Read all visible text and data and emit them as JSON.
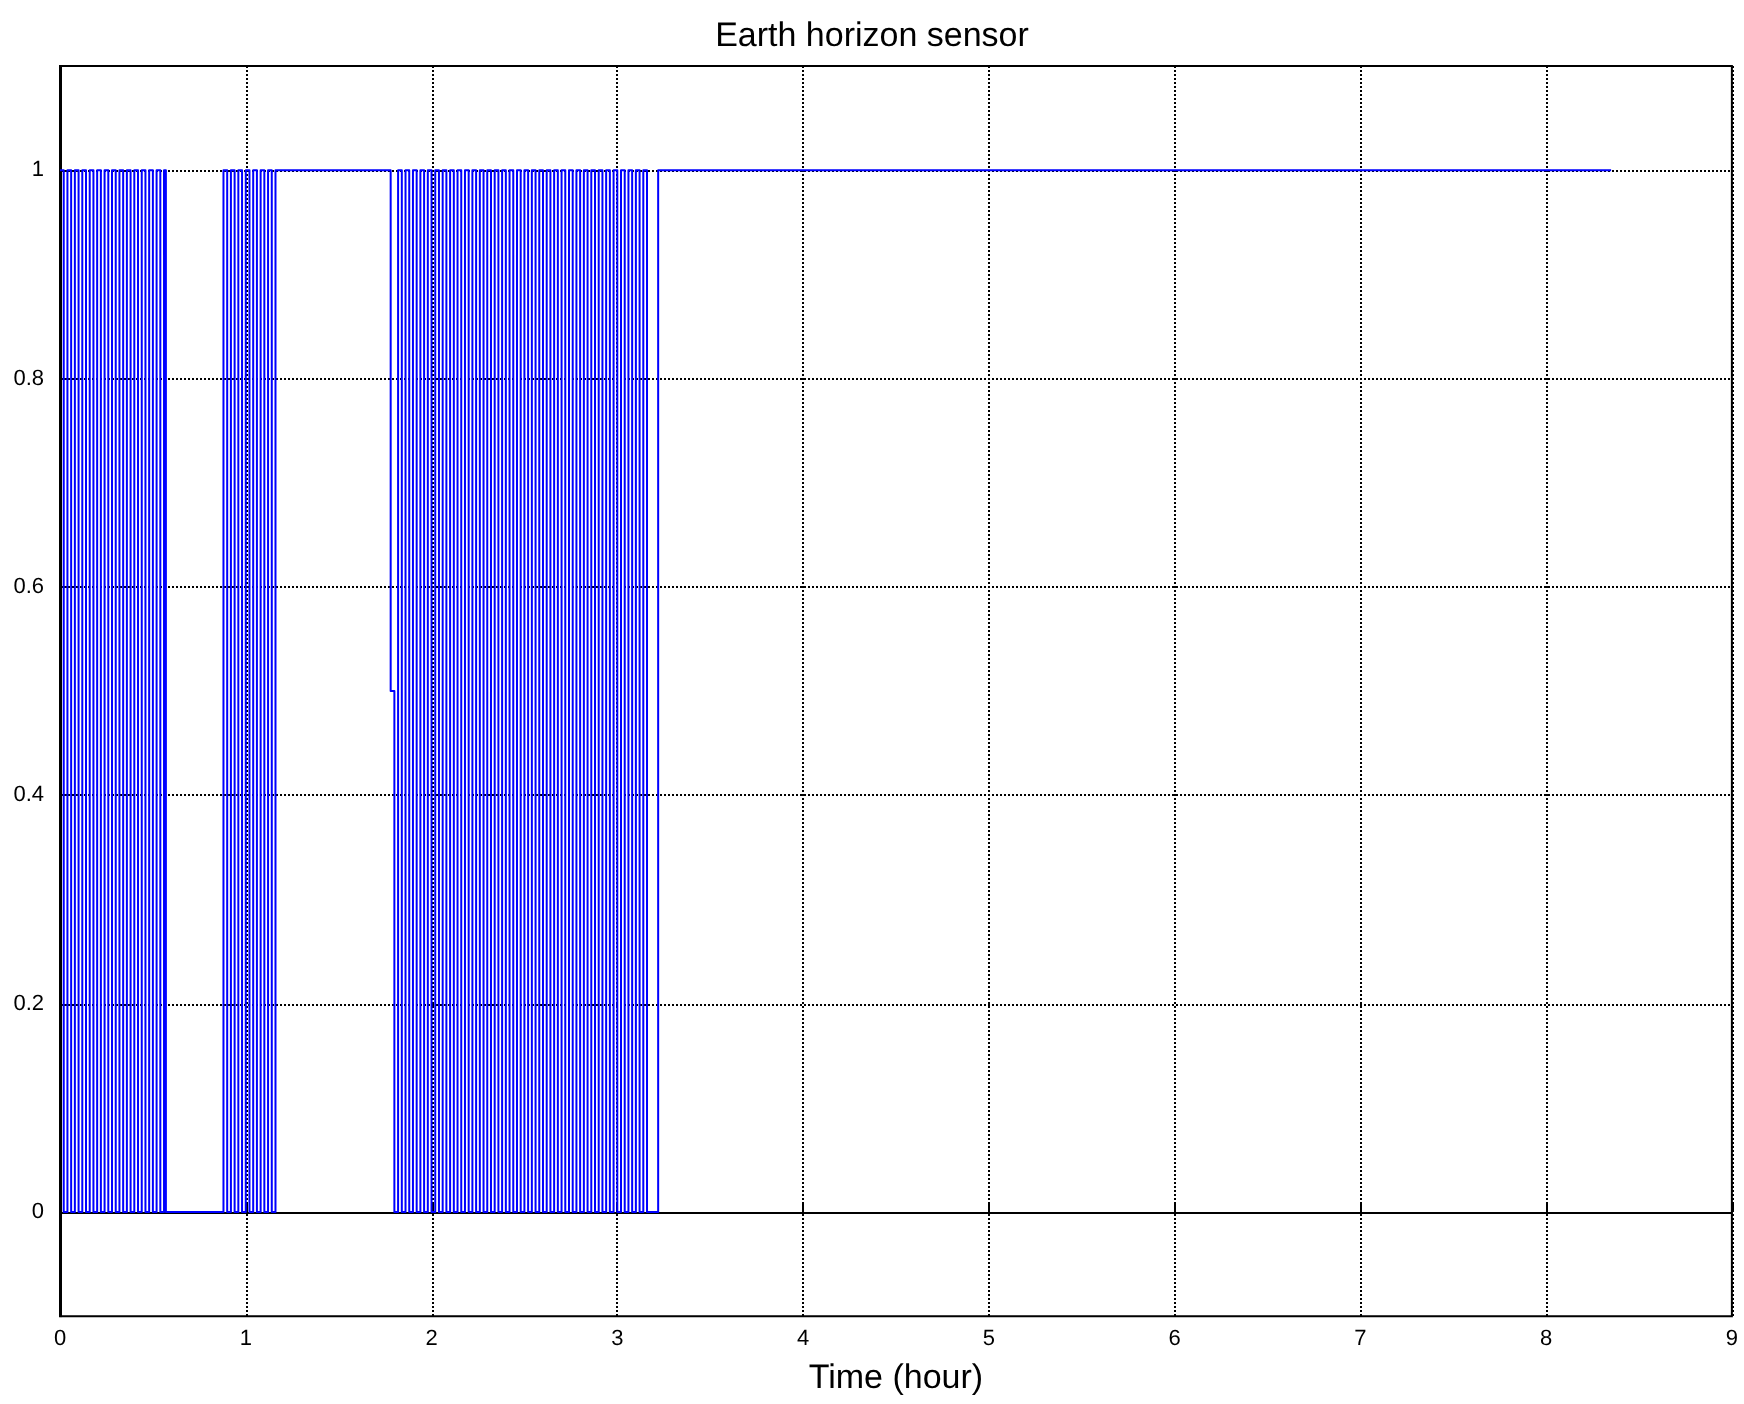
{
  "chart_data": {
    "type": "step",
    "title": "Earth horizon sensor",
    "xlabel": "Time (hour)",
    "xlim": [
      0,
      9
    ],
    "xticks": [
      0,
      1,
      2,
      3,
      4,
      5,
      6,
      7,
      8,
      9
    ],
    "ylim": [
      -0.1,
      1.1
    ],
    "yticks": [
      0,
      0.2,
      0.4,
      0.6,
      0.8,
      1
    ],
    "grid": true,
    "line_style": "solid",
    "series": [
      {
        "color": "#0000ff",
        "x": [
          0,
          0.02,
          0.04,
          0.06,
          0.08,
          0.1,
          0.12,
          0.14,
          0.16,
          0.18,
          0.2,
          0.22,
          0.24,
          0.26,
          0.28,
          0.3,
          0.32,
          0.34,
          0.36,
          0.38,
          0.4,
          0.42,
          0.44,
          0.46,
          0.48,
          0.5,
          0.52,
          0.54,
          0.56,
          0.57,
          0.88,
          0.9,
          0.92,
          0.94,
          0.96,
          0.98,
          1,
          1.02,
          1.04,
          1.06,
          1.08,
          1.1,
          1.12,
          1.14,
          1.16,
          1.78,
          1.8,
          1.82,
          1.84,
          1.86,
          1.88,
          1.9,
          1.92,
          1.94,
          1.96,
          1.98,
          2,
          2.02,
          2.04,
          2.06,
          2.08,
          2.1,
          2.12,
          2.14,
          2.16,
          2.18,
          2.2,
          2.22,
          2.24,
          2.26,
          2.28,
          2.3,
          2.32,
          2.34,
          2.36,
          2.38,
          2.4,
          2.42,
          2.44,
          2.46,
          2.48,
          2.5,
          2.52,
          2.54,
          2.56,
          2.58,
          2.6,
          2.62,
          2.64,
          2.66,
          2.68,
          2.7,
          2.72,
          2.74,
          2.76,
          2.78,
          2.8,
          2.82,
          2.84,
          2.86,
          2.88,
          2.9,
          2.92,
          2.94,
          2.96,
          2.98,
          3,
          3.02,
          3.04,
          3.06,
          3.08,
          3.1,
          3.12,
          3.14,
          3.16,
          3.22,
          8.35
        ],
        "values": [
          1,
          0,
          1,
          0,
          1,
          0,
          1,
          0,
          1,
          0,
          1,
          0,
          1,
          0,
          1,
          0,
          1,
          0,
          1,
          0,
          1,
          0,
          1,
          0,
          1,
          0,
          1,
          0,
          1,
          0,
          1,
          0,
          1,
          0,
          1,
          0,
          1,
          0,
          1,
          0,
          1,
          0,
          1,
          0,
          1,
          0.5,
          0,
          1,
          0,
          1,
          0,
          1,
          0,
          1,
          0,
          1,
          0,
          1,
          0,
          1,
          0,
          1,
          0,
          1,
          0,
          1,
          0,
          1,
          0,
          1,
          0,
          1,
          0,
          1,
          0,
          1,
          0,
          1,
          0,
          1,
          0,
          1,
          0,
          1,
          0,
          1,
          0,
          1,
          0,
          1,
          0,
          1,
          0,
          1,
          0,
          1,
          0,
          1,
          0,
          1,
          0,
          1,
          0,
          1,
          0,
          1,
          0,
          1,
          0,
          1,
          0,
          1,
          0,
          1,
          0,
          1,
          1
        ]
      }
    ]
  }
}
